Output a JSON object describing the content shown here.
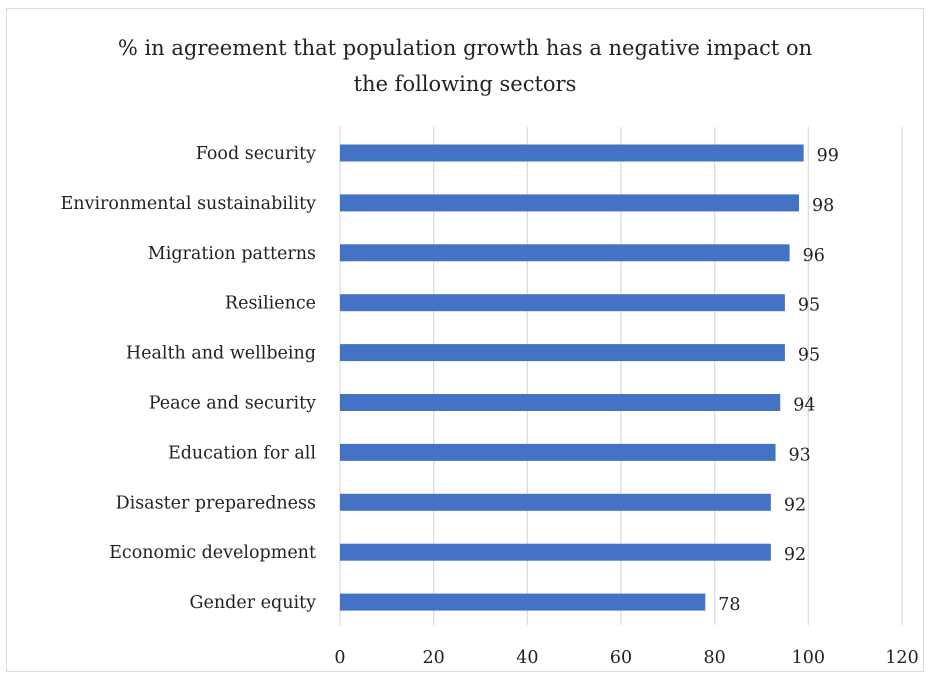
{
  "chart_data": {
    "type": "bar",
    "orientation": "horizontal",
    "title": "% in agreement that population growth has a negative impact on the following sectors",
    "title_lines": [
      "% in agreement that population growth has a negative impact on",
      "the following sectors"
    ],
    "categories": [
      "Food security",
      "Environmental sustainability",
      "Migration patterns",
      "Resilience",
      "Health and wellbeing",
      "Peace and security",
      "Education for all",
      "Disaster preparedness",
      "Economic development",
      "Gender equity"
    ],
    "values": [
      99,
      98,
      96,
      95,
      95,
      94,
      93,
      92,
      92,
      78
    ],
    "xlim": [
      0,
      120
    ],
    "xticks": [
      "0",
      "20",
      "40",
      "60",
      "80",
      "100",
      "120"
    ],
    "grid": "vertical",
    "legend": "none",
    "bar_color": "#4472c4",
    "gridline_color": "#d9d9d9"
  }
}
